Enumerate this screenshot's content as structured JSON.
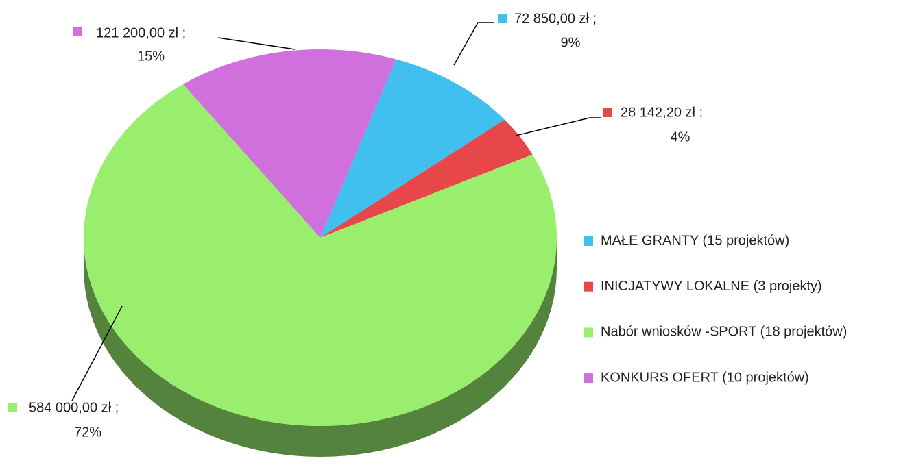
{
  "chart_data": {
    "type": "pie",
    "categories": [
      "MAŁE GRANTY (15 projektów)",
      "INICJATYWY LOKALNE (3 projekty)",
      "Nabór wniosków -SPORT (18 projektów)",
      "KONKURS OFERT (10 projektów)"
    ],
    "values": [
      72850,
      28142.2,
      584000,
      121200
    ],
    "value_labels": [
      "72 850,00 zł ;",
      "28 142,20 zł ;",
      "584 000,00 zł ;",
      "121 200,00 zł ;"
    ],
    "percent_labels": [
      "9%",
      "4%",
      "72%",
      "15%"
    ],
    "colors": [
      "#41bfef",
      "#e8474a",
      "#99ee6e",
      "#d070dc"
    ],
    "legend": "right"
  }
}
